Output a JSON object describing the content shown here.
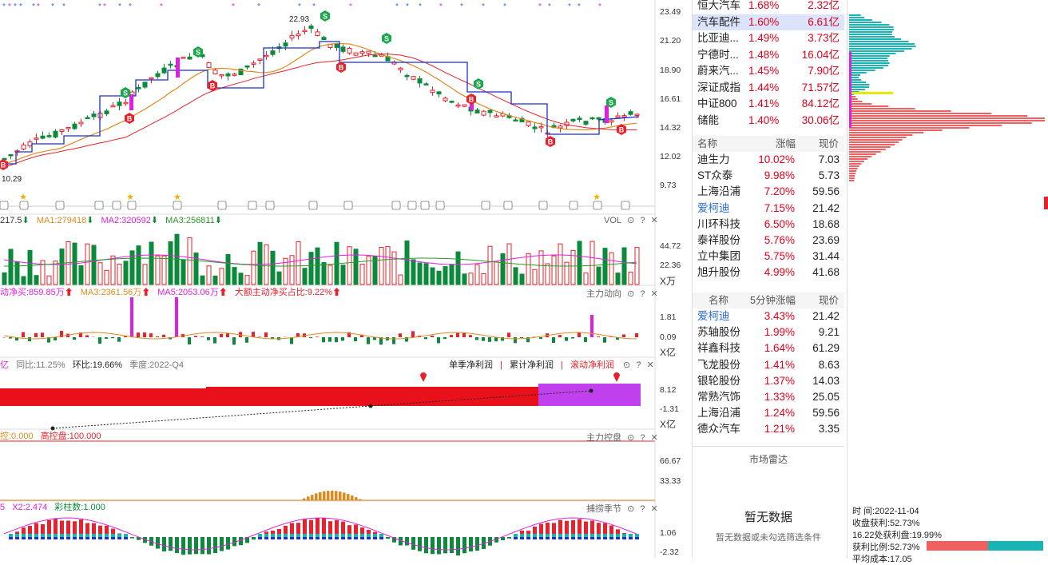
{
  "price_axis": [
    "23.49",
    "21.20",
    "18.90",
    "16.61",
    "14.32",
    "12.02",
    "9.73"
  ],
  "price_marks": {
    "high": "22.93",
    "low": "10.29"
  },
  "volume": {
    "title_values": [
      "217.5",
      "MA1:279418",
      "MA2:320592",
      "MA3:256811"
    ],
    "name": "VOL",
    "axis": [
      "44.72",
      "22.36"
    ],
    "unit": "X万"
  },
  "flow": {
    "title_values": [
      "动净买:859.85万",
      "MA3:2361.56万",
      "MA5:2053.06万",
      "大额主动净买占比:9.22%"
    ],
    "name": "主力动向",
    "axis": [
      "1.81",
      "0.09"
    ],
    "unit": "X亿"
  },
  "profit": {
    "left_labels": [
      "亿",
      "同比:11.25%",
      "环比:19.66%",
      "季度:2022-Q4"
    ],
    "tabs": [
      "单季净利润",
      "累计净利润",
      "滚动净利润"
    ],
    "axis": [
      "8.12",
      "-1.31"
    ],
    "unit": "X亿"
  },
  "control": {
    "title_values": [
      "控:0.000",
      "高控盘:100.000"
    ],
    "name": "主力控盘",
    "axis": [
      "66.67",
      "33.33"
    ]
  },
  "season": {
    "title_values": [
      "5",
      "X2:2.474",
      "彩柱数:1.000"
    ],
    "name": "捕捞季节",
    "axis": [
      "1.06",
      "-2.32"
    ]
  },
  "sector_list": [
    {
      "name": "恒大汽车",
      "pct": "1.68%",
      "amt": "2.32亿"
    },
    {
      "name": "汽车配件",
      "pct": "1.60%",
      "amt": "6.61亿",
      "selected": true
    },
    {
      "name": "比亚迪...",
      "pct": "1.49%",
      "amt": "3.73亿"
    },
    {
      "name": "宁德时...",
      "pct": "1.48%",
      "amt": "16.04亿"
    },
    {
      "name": "蔚来汽...",
      "pct": "1.45%",
      "amt": "7.90亿"
    },
    {
      "name": "深证成指",
      "pct": "1.44%",
      "amt": "71.57亿"
    },
    {
      "name": "中证800",
      "pct": "1.41%",
      "amt": "84.12亿"
    },
    {
      "name": "储能",
      "pct": "1.40%",
      "amt": "30.06亿"
    }
  ],
  "table1": {
    "headers": [
      "名称",
      "涨幅",
      "现价"
    ],
    "rows": [
      {
        "name": "迪生力",
        "pct": "10.02%",
        "price": "7.03"
      },
      {
        "name": "ST众泰",
        "pct": "9.98%",
        "price": "5.73"
      },
      {
        "name": "上海沿浦",
        "pct": "7.20%",
        "price": "59.56"
      },
      {
        "name": "爱柯迪",
        "pct": "7.15%",
        "price": "21.42",
        "highlight": true
      },
      {
        "name": "川环科技",
        "pct": "6.50%",
        "price": "18.68"
      },
      {
        "name": "泰祥股份",
        "pct": "5.76%",
        "price": "23.69"
      },
      {
        "name": "立中集团",
        "pct": "5.75%",
        "price": "31.44"
      },
      {
        "name": "旭升股份",
        "pct": "4.99%",
        "price": "41.68"
      }
    ]
  },
  "table2": {
    "headers": [
      "名称",
      "5分钟涨幅",
      "现价"
    ],
    "rows": [
      {
        "name": "爱柯迪",
        "pct": "3.43%",
        "price": "21.42",
        "highlight": true
      },
      {
        "name": "苏轴股份",
        "pct": "1.99%",
        "price": "9.21"
      },
      {
        "name": "祥鑫科技",
        "pct": "1.64%",
        "price": "61.29"
      },
      {
        "name": "飞龙股份",
        "pct": "1.41%",
        "price": "8.63"
      },
      {
        "name": "银轮股份",
        "pct": "1.37%",
        "price": "14.03"
      },
      {
        "name": "常熟汽饰",
        "pct": "1.33%",
        "price": "25.05"
      },
      {
        "name": "上海沿浦",
        "pct": "1.24%",
        "price": "59.56"
      },
      {
        "name": "德众汽车",
        "pct": "1.21%",
        "price": "3.35"
      }
    ]
  },
  "radar": {
    "title": "市场雷达",
    "empty_title": "暂无数据",
    "empty_sub": "暂无数据或未勾选筛选条件"
  },
  "chip": {
    "time": "时        间:2022-11-04",
    "close_profit": "收盘获利:52.73%",
    "profit_at": "16.22处获利盘:19.99%",
    "profit_ratio": "获利比例:52.73%",
    "avg_cost": "平均成本:17.05",
    "profit_fraction": 0.5273
  },
  "colors": {
    "up": "#e8212a",
    "down": "#0a8a3a",
    "ma1": "#e08a1e",
    "ma2": "#e020e0",
    "ma3": "#2a9a2a",
    "chip_cyan": "#19b4b4",
    "chip_red": "#f06060"
  }
}
